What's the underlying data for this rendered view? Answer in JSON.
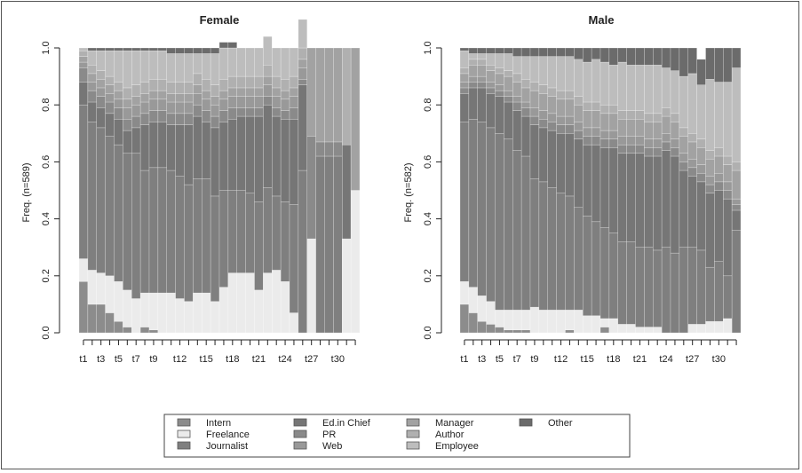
{
  "chart_data": [
    {
      "type": "bar",
      "title": "Female",
      "ylabel": "Freq. (n=589)",
      "xlabel": "",
      "ylim": [
        0,
        1
      ],
      "yticks": [
        "0.0",
        "0.2",
        "0.4",
        "0.6",
        "0.8",
        "1.0"
      ],
      "x_tick_labels": [
        "t1",
        "t3",
        "t5",
        "t7",
        "t9",
        "t12",
        "t15",
        "t18",
        "t21",
        "t24",
        "t27",
        "t30"
      ],
      "x_tick_positions": [
        1,
        3,
        5,
        7,
        9,
        12,
        15,
        18,
        21,
        24,
        27,
        30
      ],
      "n_periods": 32,
      "stacked": true,
      "legend_order": [
        "Intern",
        "Freelance",
        "Journalist",
        "Ed.in Chief",
        "PR",
        "Web",
        "Manager",
        "Author",
        "Employee",
        "Other"
      ],
      "series": [
        {
          "name": "Intern",
          "values": [
            0.18,
            0.1,
            0.1,
            0.07,
            0.04,
            0.02,
            0.0,
            0.02,
            0.01,
            0,
            0,
            0,
            0,
            0,
            0,
            0,
            0,
            0,
            0,
            0,
            0,
            0,
            0,
            0,
            0,
            0,
            0,
            0,
            0,
            0,
            0,
            0
          ]
        },
        {
          "name": "Freelance",
          "values": [
            0.08,
            0.12,
            0.11,
            0.13,
            0.14,
            0.13,
            0.12,
            0.12,
            0.13,
            0.14,
            0.14,
            0.12,
            0.11,
            0.14,
            0.14,
            0.11,
            0.16,
            0.21,
            0.21,
            0.21,
            0.15,
            0.21,
            0.22,
            0.18,
            0.07,
            0.0,
            0.33,
            0.0,
            0.0,
            0.0,
            0.33,
            0.5
          ]
        },
        {
          "name": "Journalist",
          "values": [
            0.54,
            0.52,
            0.51,
            0.49,
            0.48,
            0.48,
            0.51,
            0.43,
            0.44,
            0.44,
            0.43,
            0.43,
            0.41,
            0.4,
            0.4,
            0.37,
            0.34,
            0.29,
            0.29,
            0.28,
            0.31,
            0.3,
            0.26,
            0.28,
            0.38,
            0.57,
            0.0,
            0.62,
            0.62,
            0.62,
            0.0,
            0.0
          ]
        },
        {
          "name": "Ed.in Chief",
          "values": [
            0.08,
            0.07,
            0.07,
            0.08,
            0.09,
            0.08,
            0.09,
            0.16,
            0.16,
            0.16,
            0.16,
            0.18,
            0.21,
            0.22,
            0.2,
            0.24,
            0.24,
            0.25,
            0.26,
            0.27,
            0.3,
            0.29,
            0.28,
            0.29,
            0.3,
            0.3,
            0.0,
            0.0,
            0.0,
            0.0,
            0.33,
            0.0
          ]
        },
        {
          "name": "PR",
          "values": [
            0.05,
            0.04,
            0.04,
            0.04,
            0.04,
            0.04,
            0.04,
            0.04,
            0.04,
            0.04,
            0.04,
            0.04,
            0.04,
            0.04,
            0.04,
            0.04,
            0.04,
            0.04,
            0.03,
            0.03,
            0.03,
            0.03,
            0.03,
            0.03,
            0.04,
            0.02,
            0.36,
            0.05,
            0.05,
            0.05,
            0.0,
            0.0
          ]
        },
        {
          "name": "Web",
          "values": [
            0.02,
            0.03,
            0.03,
            0.03,
            0.03,
            0.04,
            0.04,
            0.04,
            0.04,
            0.04,
            0.04,
            0.04,
            0.04,
            0.04,
            0.04,
            0.04,
            0.04,
            0.04,
            0.04,
            0.04,
            0.04,
            0.04,
            0.04,
            0.04,
            0.04,
            0.04,
            0.0,
            0.0,
            0.0,
            0.0,
            0.0,
            0.0
          ]
        },
        {
          "name": "Manager",
          "values": [
            0.02,
            0.03,
            0.03,
            0.03,
            0.03,
            0.03,
            0.03,
            0.03,
            0.03,
            0.03,
            0.03,
            0.03,
            0.03,
            0.03,
            0.03,
            0.03,
            0.03,
            0.03,
            0.03,
            0.03,
            0.03,
            0.03,
            0.03,
            0.03,
            0.03,
            0.03,
            0.31,
            0.33,
            0.33,
            0.33,
            0.0,
            0.5
          ]
        },
        {
          "name": "Author",
          "values": [
            0.02,
            0.03,
            0.03,
            0.03,
            0.03,
            0.04,
            0.04,
            0.04,
            0.04,
            0.04,
            0.04,
            0.04,
            0.04,
            0.04,
            0.04,
            0.04,
            0.04,
            0.04,
            0.04,
            0.04,
            0.04,
            0.04,
            0.04,
            0.04,
            0.04,
            0.04,
            0.0,
            0.0,
            0.0,
            0.0,
            0.34,
            0.0
          ]
        },
        {
          "name": "Employee",
          "values": [
            0.01,
            0.05,
            0.07,
            0.09,
            0.11,
            0.13,
            0.12,
            0.11,
            0.1,
            0.1,
            0.1,
            0.1,
            0.1,
            0.07,
            0.09,
            0.11,
            0.11,
            0.1,
            0.1,
            0.1,
            0.1,
            0.1,
            0.1,
            0.11,
            0.1,
            0.1,
            0.0,
            0.0,
            0.0,
            0.0,
            0.0,
            0.0
          ]
        },
        {
          "name": "Other",
          "values": [
            0.0,
            0.01,
            0.01,
            0.01,
            0.01,
            0.01,
            0.01,
            0.01,
            0.01,
            0.01,
            0.02,
            0.02,
            0.02,
            0.02,
            0.02,
            0.02,
            0.02,
            0.02,
            0.0,
            0.0,
            0.0,
            0.0,
            0.0,
            0.0,
            0.0,
            0.0,
            0.0,
            0.0,
            0.0,
            0.0,
            0.0,
            0.0
          ]
        }
      ]
    },
    {
      "type": "bar",
      "title": "Male",
      "ylabel": "Freq. (n=582)",
      "xlabel": "",
      "ylim": [
        0,
        1
      ],
      "yticks": [
        "0.0",
        "0.2",
        "0.4",
        "0.6",
        "0.8",
        "1.0"
      ],
      "x_tick_labels": [
        "t1",
        "t3",
        "t5",
        "t7",
        "t9",
        "t12",
        "t15",
        "t18",
        "t21",
        "t24",
        "t27",
        "t30"
      ],
      "x_tick_positions": [
        1,
        3,
        5,
        7,
        9,
        12,
        15,
        18,
        21,
        24,
        27,
        30
      ],
      "n_periods": 32,
      "stacked": true,
      "legend_order": [
        "Intern",
        "Freelance",
        "Journalist",
        "Ed.in Chief",
        "PR",
        "Web",
        "Manager",
        "Author",
        "Employee",
        "Other"
      ],
      "series": [
        {
          "name": "Intern",
          "values": [
            0.1,
            0.07,
            0.04,
            0.03,
            0.02,
            0.01,
            0.01,
            0.01,
            0.0,
            0.0,
            0.0,
            0.0,
            0.01,
            0.0,
            0.0,
            0.0,
            0.02,
            0.0,
            0.0,
            0.0,
            0.0,
            0.0,
            0.0,
            0.0,
            0.0,
            0.0,
            0.0,
            0.0,
            0.0,
            0.0,
            0.0,
            0.0
          ]
        },
        {
          "name": "Freelance",
          "values": [
            0.08,
            0.09,
            0.09,
            0.08,
            0.06,
            0.07,
            0.07,
            0.07,
            0.09,
            0.08,
            0.08,
            0.08,
            0.07,
            0.08,
            0.06,
            0.06,
            0.03,
            0.05,
            0.03,
            0.03,
            0.02,
            0.02,
            0.02,
            0.0,
            0.0,
            0.0,
            0.03,
            0.03,
            0.04,
            0.04,
            0.05,
            0.0
          ]
        },
        {
          "name": "Journalist",
          "values": [
            0.56,
            0.59,
            0.61,
            0.61,
            0.62,
            0.6,
            0.56,
            0.54,
            0.45,
            0.45,
            0.43,
            0.41,
            0.4,
            0.36,
            0.35,
            0.33,
            0.32,
            0.3,
            0.29,
            0.29,
            0.28,
            0.28,
            0.27,
            0.3,
            0.28,
            0.3,
            0.27,
            0.26,
            0.19,
            0.21,
            0.15,
            0.36
          ]
        },
        {
          "name": "Ed.in Chief",
          "values": [
            0.1,
            0.11,
            0.12,
            0.12,
            0.13,
            0.13,
            0.14,
            0.14,
            0.19,
            0.19,
            0.2,
            0.21,
            0.22,
            0.24,
            0.25,
            0.27,
            0.28,
            0.3,
            0.31,
            0.31,
            0.33,
            0.32,
            0.33,
            0.34,
            0.34,
            0.27,
            0.25,
            0.24,
            0.26,
            0.25,
            0.27,
            0.07
          ]
        },
        {
          "name": "PR",
          "values": [
            0.02,
            0.02,
            0.02,
            0.02,
            0.02,
            0.02,
            0.03,
            0.03,
            0.03,
            0.03,
            0.03,
            0.03,
            0.03,
            0.03,
            0.03,
            0.03,
            0.03,
            0.03,
            0.03,
            0.03,
            0.03,
            0.03,
            0.03,
            0.03,
            0.03,
            0.03,
            0.03,
            0.03,
            0.03,
            0.03,
            0.03,
            0.02
          ]
        },
        {
          "name": "Web",
          "values": [
            0.02,
            0.02,
            0.02,
            0.02,
            0.02,
            0.02,
            0.02,
            0.02,
            0.03,
            0.03,
            0.03,
            0.03,
            0.03,
            0.03,
            0.03,
            0.03,
            0.03,
            0.03,
            0.03,
            0.03,
            0.03,
            0.03,
            0.03,
            0.03,
            0.03,
            0.03,
            0.03,
            0.03,
            0.03,
            0.03,
            0.03,
            0.02
          ]
        },
        {
          "name": "Manager",
          "values": [
            0.03,
            0.04,
            0.04,
            0.04,
            0.04,
            0.05,
            0.05,
            0.05,
            0.06,
            0.06,
            0.06,
            0.06,
            0.06,
            0.06,
            0.06,
            0.06,
            0.06,
            0.06,
            0.06,
            0.06,
            0.06,
            0.06,
            0.06,
            0.06,
            0.06,
            0.06,
            0.06,
            0.06,
            0.06,
            0.06,
            0.06,
            0.1
          ]
        },
        {
          "name": "Author",
          "values": [
            0.02,
            0.02,
            0.02,
            0.02,
            0.02,
            0.02,
            0.03,
            0.03,
            0.03,
            0.03,
            0.03,
            0.03,
            0.03,
            0.03,
            0.03,
            0.03,
            0.03,
            0.03,
            0.03,
            0.03,
            0.03,
            0.03,
            0.03,
            0.03,
            0.03,
            0.03,
            0.03,
            0.03,
            0.03,
            0.03,
            0.03,
            0.03
          ]
        },
        {
          "name": "Employee",
          "values": [
            0.06,
            0.02,
            0.02,
            0.04,
            0.05,
            0.06,
            0.06,
            0.08,
            0.09,
            0.1,
            0.11,
            0.12,
            0.12,
            0.13,
            0.14,
            0.15,
            0.15,
            0.14,
            0.17,
            0.16,
            0.16,
            0.17,
            0.17,
            0.14,
            0.15,
            0.18,
            0.21,
            0.19,
            0.25,
            0.23,
            0.26,
            0.33
          ]
        },
        {
          "name": "Other",
          "values": [
            0.01,
            0.02,
            0.02,
            0.02,
            0.02,
            0.02,
            0.03,
            0.03,
            0.03,
            0.03,
            0.03,
            0.03,
            0.03,
            0.04,
            0.05,
            0.04,
            0.05,
            0.06,
            0.05,
            0.06,
            0.06,
            0.06,
            0.06,
            0.07,
            0.08,
            0.1,
            0.09,
            0.09,
            0.11,
            0.12,
            0.12,
            0.07
          ]
        }
      ]
    }
  ],
  "legend": {
    "items": [
      {
        "label": "Intern",
        "color": "#8c8c8c"
      },
      {
        "label": "Freelance",
        "color": "#ebebeb"
      },
      {
        "label": "Journalist",
        "color": "#7f7f7f"
      },
      {
        "label": "Ed.in Chief",
        "color": "#767676"
      },
      {
        "label": "PR",
        "color": "#8a8a8a"
      },
      {
        "label": "Web",
        "color": "#999999"
      },
      {
        "label": "Manager",
        "color": "#a2a2a2"
      },
      {
        "label": "Author",
        "color": "#b0b0b0"
      },
      {
        "label": "Employee",
        "color": "#bdbdbd"
      },
      {
        "label": "Other",
        "color": "#6b6b6b"
      }
    ]
  }
}
